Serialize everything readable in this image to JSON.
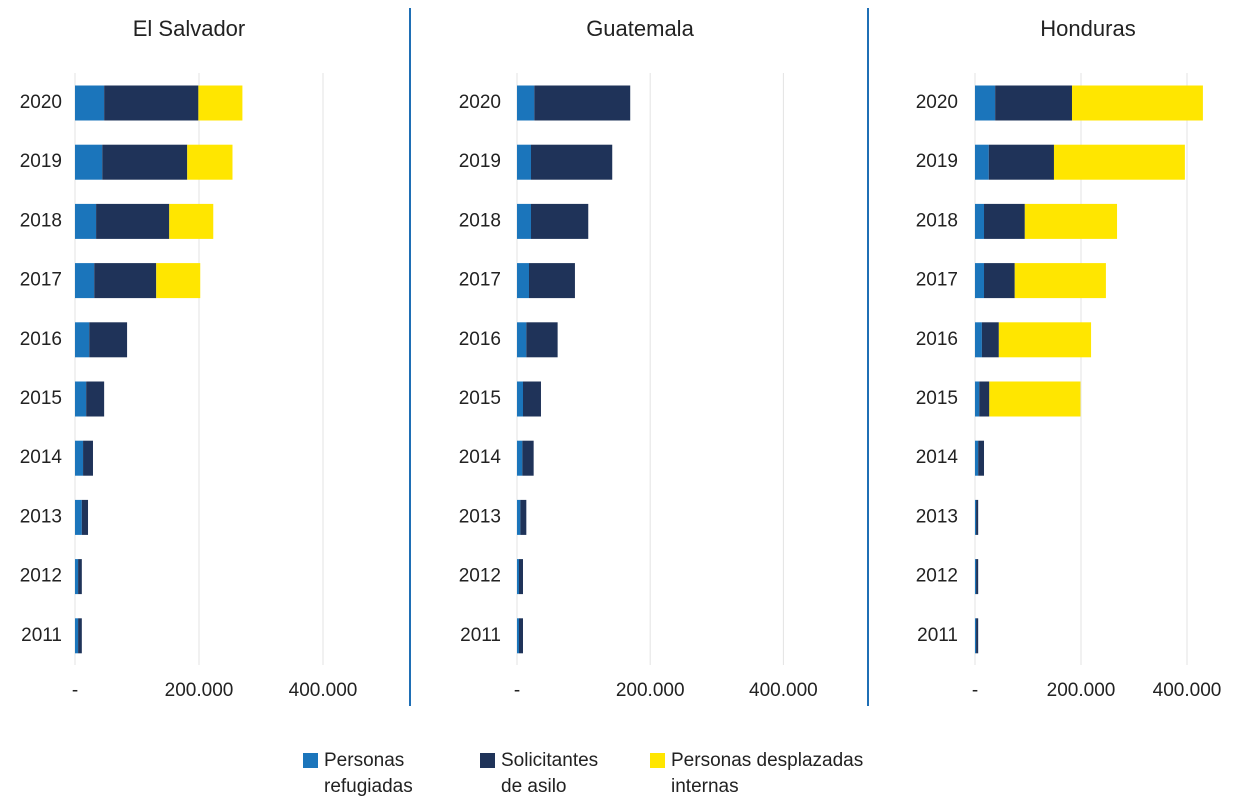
{
  "chart_data": [
    {
      "type": "bar",
      "title": "El Salvador",
      "categories": [
        "2020",
        "2019",
        "2018",
        "2017",
        "2016",
        "2015",
        "2014",
        "2013",
        "2012",
        "2011"
      ],
      "series": [
        {
          "name": "Personas refugiadas",
          "color": "#1b75bb",
          "values": [
            47000,
            44000,
            34000,
            31000,
            23000,
            18000,
            13000,
            11000,
            5000,
            5000
          ]
        },
        {
          "name": "Solicitantes de asilo",
          "color": "#1f3359",
          "values": [
            152000,
            137000,
            118000,
            100000,
            61000,
            29000,
            16000,
            10000,
            6000,
            6000
          ]
        },
        {
          "name": "Personas desplazadas internas",
          "color": "#ffe600",
          "values": [
            71000,
            73000,
            71000,
            71000,
            0,
            0,
            0,
            0,
            0,
            0
          ]
        }
      ],
      "xlim": [
        0,
        500000
      ],
      "xticks": [
        {
          "value": 0,
          "label": "-"
        },
        {
          "value": 200000,
          "label": "200.000"
        },
        {
          "value": 400000,
          "label": "400.000"
        }
      ]
    },
    {
      "type": "bar",
      "title": "Guatemala",
      "categories": [
        "2020",
        "2019",
        "2018",
        "2017",
        "2016",
        "2015",
        "2014",
        "2013",
        "2012",
        "2011"
      ],
      "series": [
        {
          "values": [
            26000,
            21000,
            21000,
            18000,
            14000,
            9000,
            8000,
            5000,
            3000,
            3000
          ]
        },
        {
          "values": [
            144000,
            122000,
            86000,
            69000,
            47000,
            27000,
            17000,
            9000,
            6000,
            6000
          ]
        },
        {
          "values": [
            0,
            0,
            0,
            0,
            0,
            0,
            0,
            0,
            0,
            0
          ]
        }
      ],
      "xlim": [
        0,
        500000
      ],
      "xticks": [
        {
          "value": 0,
          "label": "-"
        },
        {
          "value": 200000,
          "label": "200.000"
        },
        {
          "value": 400000,
          "label": "400.000"
        }
      ]
    },
    {
      "type": "bar",
      "title": "Honduras",
      "categories": [
        "2020",
        "2019",
        "2018",
        "2017",
        "2016",
        "2015",
        "2014",
        "2013",
        "2012",
        "2011"
      ],
      "series": [
        {
          "values": [
            38000,
            26000,
            17000,
            17000,
            13000,
            8000,
            6000,
            2000,
            2000,
            2000
          ]
        },
        {
          "values": [
            145000,
            123000,
            77000,
            58000,
            32000,
            19000,
            11000,
            4000,
            4000,
            4000
          ]
        },
        {
          "values": [
            247000,
            247000,
            174000,
            172000,
            174000,
            172000,
            0,
            0,
            0,
            0
          ]
        }
      ],
      "xlim": [
        0,
        500000
      ],
      "xticks": [
        {
          "value": 0,
          "label": "-"
        },
        {
          "value": 200000,
          "label": "200.000"
        },
        {
          "value": 400000,
          "label": "400.000"
        }
      ]
    }
  ]
}
